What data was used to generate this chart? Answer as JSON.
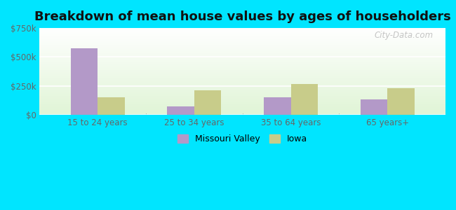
{
  "title": "Breakdown of mean house values by ages of householders",
  "categories": [
    "15 to 24 years",
    "25 to 34 years",
    "35 to 64 years",
    "65 years+"
  ],
  "missouri_valley": [
    575000,
    75000,
    155000,
    135000
  ],
  "iowa": [
    155000,
    210000,
    265000,
    230000
  ],
  "mv_color": "#b399c8",
  "iowa_color": "#c8cc8a",
  "ylim": [
    0,
    750000
  ],
  "yticks": [
    0,
    250000,
    500000,
    750000
  ],
  "ytick_labels": [
    "$0",
    "$250k",
    "$500k",
    "$750k"
  ],
  "outer_bg": "#00e5ff",
  "bar_width": 0.28,
  "legend_mv": "Missouri Valley",
  "legend_iowa": "Iowa",
  "title_fontsize": 13,
  "watermark": "City-Data.com"
}
